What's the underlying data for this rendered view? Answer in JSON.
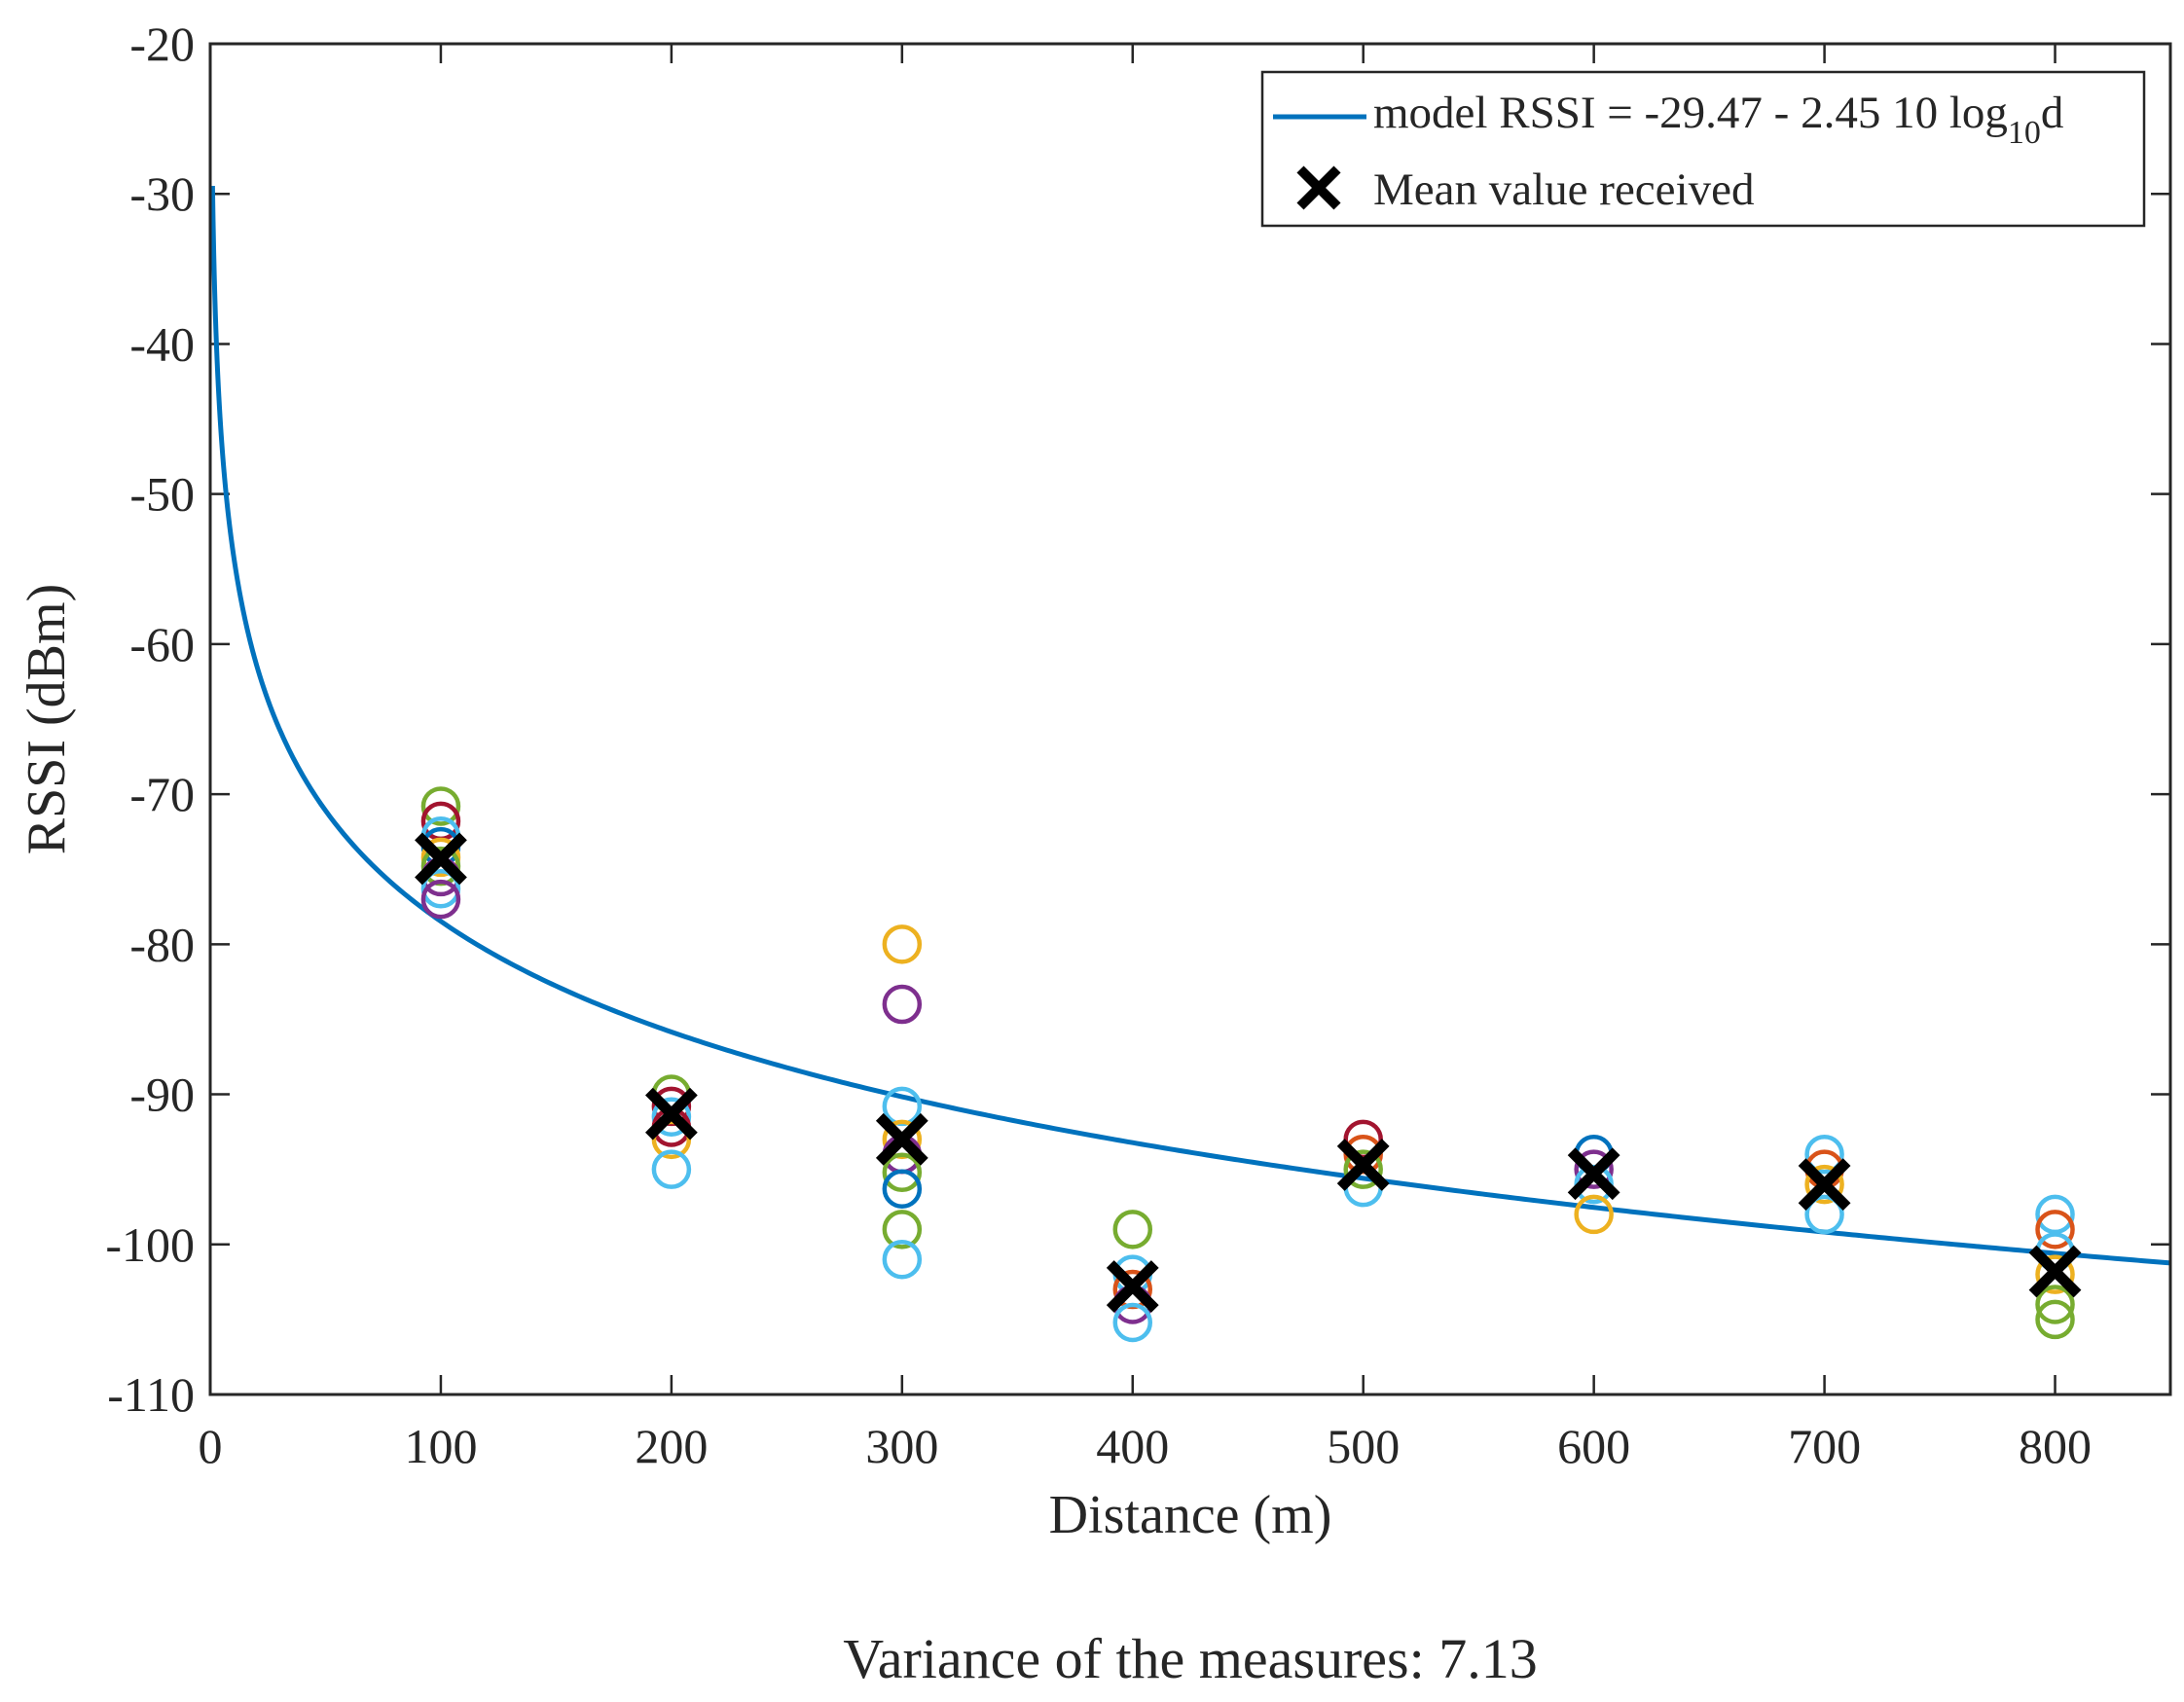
{
  "chart_data": {
    "type": "scatter",
    "title": "",
    "xlabel": "Distance (m)",
    "ylabel": "RSSI (dBm)",
    "xlim": [
      0,
      850
    ],
    "ylim": [
      -110,
      -20
    ],
    "x_ticks": [
      0,
      100,
      200,
      300,
      400,
      500,
      600,
      700,
      800
    ],
    "y_ticks": [
      -20,
      -30,
      -40,
      -50,
      -60,
      -70,
      -80,
      -90,
      -100,
      -110
    ],
    "grid": false,
    "legend_position": "top-right",
    "model": {
      "label_prefix": "model RSSI = -29.47 - 2.45 10 log",
      "label_subscript": "10",
      "label_suffix": "d",
      "intercept": -29.47,
      "coefficient": -24.5,
      "color": "#0072BD"
    },
    "mean_series": {
      "label": "Mean value received",
      "color": "#000000",
      "x": [
        100,
        200,
        300,
        400,
        500,
        600,
        700,
        800
      ],
      "y": [
        -74.3,
        -91.3,
        -93.0,
        -102.8,
        -94.7,
        -95.3,
        -96.0,
        -101.8
      ]
    },
    "measurements": [
      {
        "x": 100,
        "y": -70.8,
        "color": "#77AC30"
      },
      {
        "x": 100,
        "y": -71.8,
        "color": "#A2142F"
      },
      {
        "x": 100,
        "y": -72.8,
        "color": "#4DBEEE"
      },
      {
        "x": 100,
        "y": -73.5,
        "color": "#0072BD"
      },
      {
        "x": 100,
        "y": -74.2,
        "color": "#EDB120"
      },
      {
        "x": 100,
        "y": -74.8,
        "color": "#77AC30"
      },
      {
        "x": 100,
        "y": -75.5,
        "color": "#7E2F8E"
      },
      {
        "x": 100,
        "y": -76.3,
        "color": "#4DBEEE"
      },
      {
        "x": 100,
        "y": -77.0,
        "color": "#7E2F8E"
      },
      {
        "x": 200,
        "y": -90.0,
        "color": "#77AC30"
      },
      {
        "x": 200,
        "y": -90.8,
        "color": "#A2142F"
      },
      {
        "x": 200,
        "y": -91.5,
        "color": "#4DBEEE"
      },
      {
        "x": 200,
        "y": -92.2,
        "color": "#A2142F"
      },
      {
        "x": 200,
        "y": -93.0,
        "color": "#EDB120"
      },
      {
        "x": 200,
        "y": -95.0,
        "color": "#4DBEEE"
      },
      {
        "x": 300,
        "y": -80.0,
        "color": "#EDB120"
      },
      {
        "x": 300,
        "y": -84.0,
        "color": "#7E2F8E"
      },
      {
        "x": 300,
        "y": -90.8,
        "color": "#4DBEEE"
      },
      {
        "x": 300,
        "y": -93.0,
        "color": "#EDB120"
      },
      {
        "x": 300,
        "y": -94.0,
        "color": "#7E2F8E"
      },
      {
        "x": 300,
        "y": -95.2,
        "color": "#77AC30"
      },
      {
        "x": 300,
        "y": -96.3,
        "color": "#0072BD"
      },
      {
        "x": 300,
        "y": -99.0,
        "color": "#77AC30"
      },
      {
        "x": 300,
        "y": -101.0,
        "color": "#4DBEEE"
      },
      {
        "x": 400,
        "y": -99.0,
        "color": "#77AC30"
      },
      {
        "x": 400,
        "y": -102.0,
        "color": "#4DBEEE"
      },
      {
        "x": 400,
        "y": -103.0,
        "color": "#D95319"
      },
      {
        "x": 400,
        "y": -104.0,
        "color": "#7E2F8E"
      },
      {
        "x": 400,
        "y": -105.2,
        "color": "#4DBEEE"
      },
      {
        "x": 500,
        "y": -93.0,
        "color": "#A2142F"
      },
      {
        "x": 500,
        "y": -94.0,
        "color": "#D95319"
      },
      {
        "x": 500,
        "y": -95.0,
        "color": "#77AC30"
      },
      {
        "x": 500,
        "y": -96.2,
        "color": "#4DBEEE"
      },
      {
        "x": 600,
        "y": -94.0,
        "color": "#0072BD"
      },
      {
        "x": 600,
        "y": -95.0,
        "color": "#7E2F8E"
      },
      {
        "x": 600,
        "y": -96.0,
        "color": "#4DBEEE"
      },
      {
        "x": 600,
        "y": -98.0,
        "color": "#EDB120"
      },
      {
        "x": 700,
        "y": -94.0,
        "color": "#4DBEEE"
      },
      {
        "x": 700,
        "y": -95.0,
        "color": "#D95319"
      },
      {
        "x": 700,
        "y": -96.0,
        "color": "#EDB120"
      },
      {
        "x": 700,
        "y": -98.0,
        "color": "#4DBEEE"
      },
      {
        "x": 800,
        "y": -98.0,
        "color": "#4DBEEE"
      },
      {
        "x": 800,
        "y": -99.0,
        "color": "#D95319"
      },
      {
        "x": 800,
        "y": -100.5,
        "color": "#4DBEEE"
      },
      {
        "x": 800,
        "y": -102.0,
        "color": "#EDB120"
      },
      {
        "x": 800,
        "y": -104.0,
        "color": "#77AC30"
      },
      {
        "x": 800,
        "y": -105.0,
        "color": "#77AC30"
      }
    ]
  },
  "caption": "Variance of the measures: 7.13"
}
